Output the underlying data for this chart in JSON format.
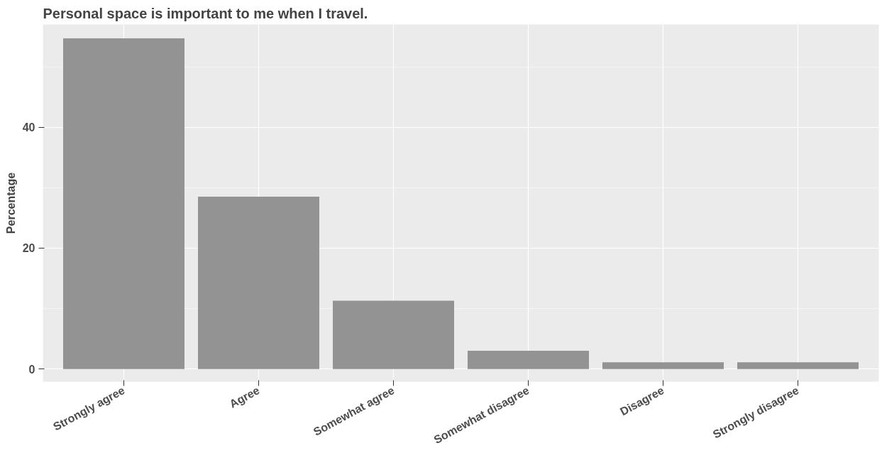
{
  "chart_data": {
    "type": "bar",
    "title": "Personal space is important to me when I travel.",
    "ylabel": "Percentage",
    "categories": [
      "Strongly agree",
      "Agree",
      "Somewhat agree",
      "Somewhat disagree",
      "Disagree",
      "Strongly disagree"
    ],
    "values": [
      54.7,
      28.5,
      11.3,
      3.0,
      1.1,
      1.1
    ],
    "color": "#939393",
    "ylim": [
      -2.1,
      57
    ],
    "yticks": [
      0,
      20,
      40
    ],
    "grid": true
  }
}
